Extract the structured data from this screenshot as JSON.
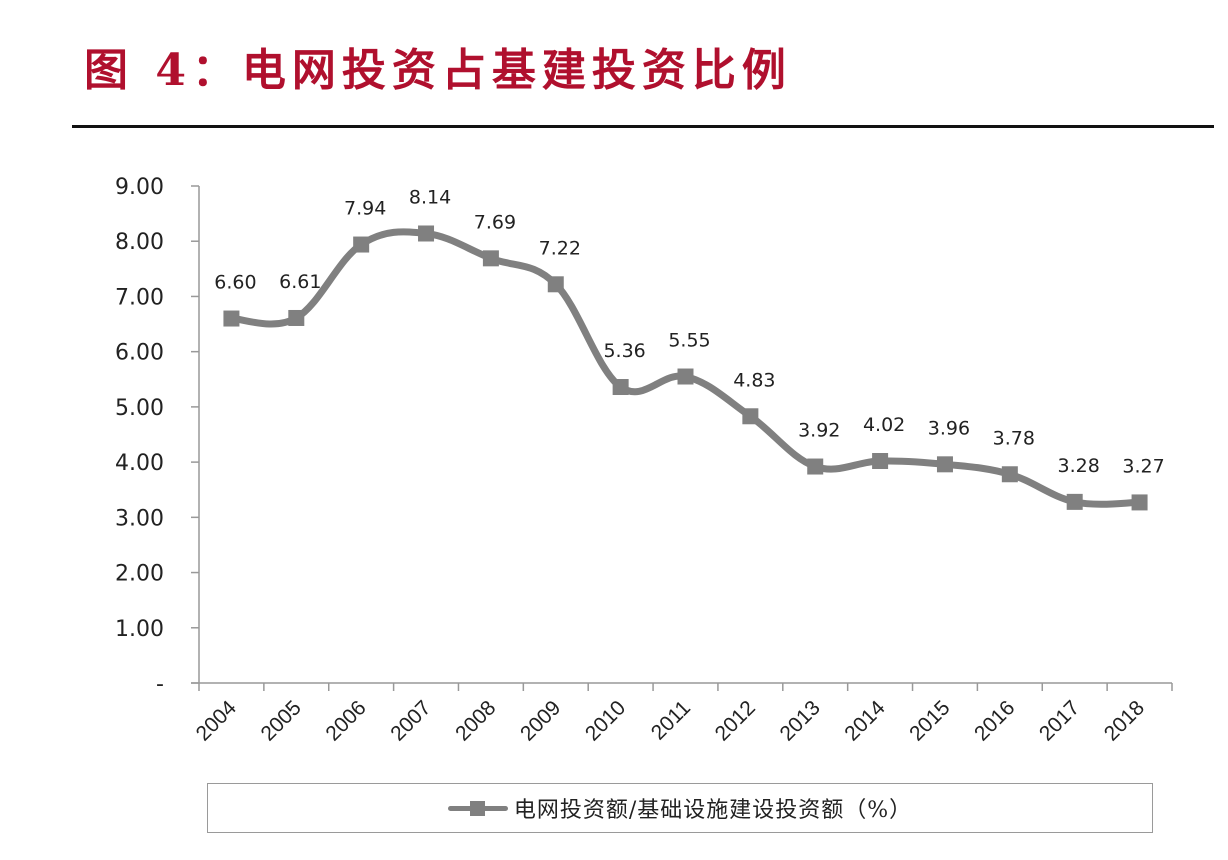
{
  "header": {
    "title": "图 4：电网投资占基建投资比例"
  },
  "chart_data": {
    "type": "line",
    "title": "图 4：电网投资占基建投资比例",
    "categories": [
      "2004",
      "2005",
      "2006",
      "2007",
      "2008",
      "2009",
      "2010",
      "2011",
      "2012",
      "2013",
      "2014",
      "2015",
      "2016",
      "2017",
      "2018"
    ],
    "series": [
      {
        "name": "电网投资额/基础设施建设投资额（%）",
        "values": [
          6.6,
          6.61,
          7.94,
          8.14,
          7.69,
          7.22,
          5.36,
          5.55,
          4.83,
          3.92,
          4.02,
          3.96,
          3.78,
          3.28,
          3.27
        ],
        "labels": [
          "6.60",
          "6.61",
          "7.94",
          "8.14",
          "7.69",
          "7.22",
          "5.36",
          "5.55",
          "4.83",
          "3.92",
          "4.02",
          "3.96",
          "3.78",
          "3.28",
          "3.27"
        ],
        "color": "#808080",
        "marker": "square",
        "smooth": true
      }
    ],
    "xlabel": "",
    "ylabel": "",
    "ylim": [
      0,
      9
    ],
    "yticks": [
      0,
      1,
      2,
      3,
      4,
      5,
      6,
      7,
      8,
      9
    ],
    "ytick_labels": [
      "-",
      "1.00",
      "2.00",
      "3.00",
      "4.00",
      "5.00",
      "6.00",
      "7.00",
      "8.00",
      "9.00"
    ],
    "grid": false,
    "legend_position": "bottom"
  },
  "legend": {
    "label": "电网投资额/基础设施建设投资额（%）"
  },
  "colors": {
    "title": "#b0102e",
    "series": "#808080",
    "axis": "#999999"
  }
}
